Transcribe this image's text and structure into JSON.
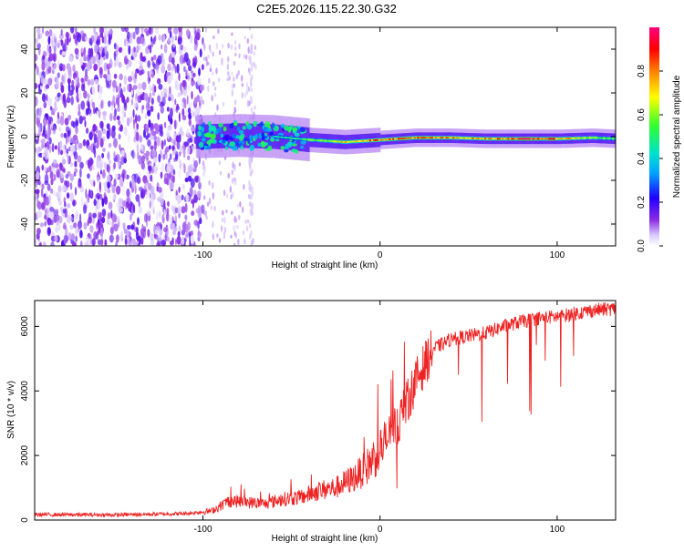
{
  "figure_title": "C2E5.2026.115.22.30.G32",
  "chart_data": [
    {
      "type": "heatmap",
      "title": "C2E5.2026.115.22.30.G32",
      "xlabel": "Height of straight line (km)",
      "ylabel": "Frequency (Hz)",
      "xlim": [
        -195,
        133
      ],
      "ylim": [
        -50,
        50
      ],
      "x_ticks": [
        -100,
        0,
        100
      ],
      "x_tick_labels": [
        "-100",
        "0",
        "100"
      ],
      "y_ticks": [
        -40,
        -20,
        0,
        20,
        40
      ],
      "y_tick_labels": [
        "-40",
        "-20",
        "0",
        "20",
        "40"
      ],
      "colorbar": {
        "label": "Normalized spectral amplitude",
        "range": [
          0,
          1
        ],
        "ticks": [
          0.0,
          0.2,
          0.4,
          0.6,
          0.8
        ],
        "tick_labels": [
          "0.0",
          "0.2",
          "0.4",
          "0.6",
          "0.8"
        ],
        "colormap": [
          "#ffffff",
          "#d8c8ff",
          "#8a2be2",
          "#2000ff",
          "#00a0ff",
          "#00e0d0",
          "#30ff30",
          "#ffff00",
          "#ff8000",
          "#ff0000",
          "#ff0080"
        ]
      },
      "ridge": [
        {
          "x": -100,
          "freq": 0.0,
          "amp": 0.35
        },
        {
          "x": -80,
          "freq": 0.5,
          "amp": 0.4
        },
        {
          "x": -60,
          "freq": 0.0,
          "amp": 0.45
        },
        {
          "x": -40,
          "freq": -1.5,
          "amp": 0.55
        },
        {
          "x": -20,
          "freq": -2.5,
          "amp": 0.7
        },
        {
          "x": 0,
          "freq": -1.5,
          "amp": 0.85
        },
        {
          "x": 20,
          "freq": -0.5,
          "amp": 0.8
        },
        {
          "x": 40,
          "freq": -0.5,
          "amp": 0.75
        },
        {
          "x": 60,
          "freq": -1.0,
          "amp": 0.75
        },
        {
          "x": 80,
          "freq": -1.0,
          "amp": 0.9
        },
        {
          "x": 100,
          "freq": -1.0,
          "amp": 0.8
        },
        {
          "x": 120,
          "freq": -0.5,
          "amp": 0.6
        },
        {
          "x": 133,
          "freq": -1.0,
          "amp": 0.5
        }
      ],
      "noise_region_x": [
        -195,
        -100
      ]
    },
    {
      "type": "line",
      "title": "",
      "xlabel": "Height of straight line (km)",
      "ylabel": "SNR (10 * v/v)",
      "xlim": [
        -195,
        133
      ],
      "ylim": [
        0,
        6800
      ],
      "x_ticks": [
        -100,
        0,
        100
      ],
      "x_tick_labels": [
        "-100",
        "0",
        "100"
      ],
      "y_ticks": [
        0,
        2000,
        4000,
        6000
      ],
      "y_tick_labels": [
        "0",
        "2000",
        "4000",
        "6000"
      ],
      "series": [
        {
          "name": "SNR",
          "color": "#ee2222",
          "trend_x": [
            -195,
            -150,
            -110,
            -95,
            -85,
            -75,
            -65,
            -55,
            -45,
            -35,
            -25,
            -15,
            -8,
            0,
            5,
            10,
            15,
            20,
            25,
            30,
            40,
            50,
            60,
            70,
            80,
            90,
            100,
            110,
            120,
            133
          ],
          "trend_y": [
            170,
            160,
            200,
            280,
            600,
            550,
            500,
            650,
            700,
            900,
            1000,
            1300,
            1600,
            2200,
            2600,
            3000,
            3600,
            4300,
            4800,
            5300,
            5600,
            5700,
            5800,
            6000,
            6150,
            6250,
            6300,
            6400,
            6500,
            6550
          ]
        }
      ]
    }
  ]
}
